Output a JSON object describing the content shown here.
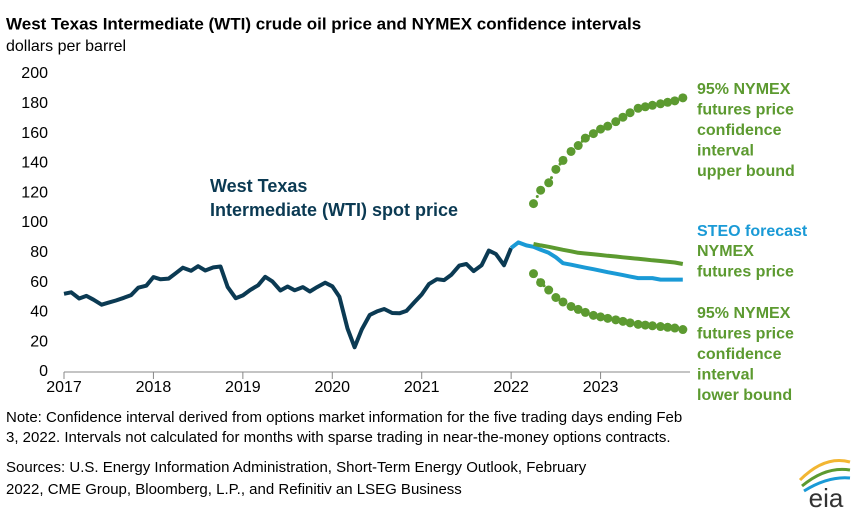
{
  "chart_data": {
    "type": "line",
    "title": "West Texas Intermediate (WTI) crude oil price and NYMEX confidence intervals",
    "subtitle": "dollars per barrel",
    "xlim": [
      2017,
      2024
    ],
    "xticks": [
      2017,
      2018,
      2019,
      2020,
      2021,
      2022,
      2023
    ],
    "ylim": [
      0,
      200
    ],
    "yticks": [
      0,
      20,
      40,
      60,
      80,
      100,
      120,
      140,
      160,
      180,
      200
    ],
    "grid": false,
    "series": [
      {
        "name": "West Texas Intermediate (WTI) spot price",
        "color": "#0b3a53",
        "style": "solid",
        "x": [
          2017.0,
          2017.08,
          2017.17,
          2017.25,
          2017.33,
          2017.42,
          2017.5,
          2017.58,
          2017.67,
          2017.75,
          2017.83,
          2017.92,
          2018.0,
          2018.08,
          2018.17,
          2018.25,
          2018.33,
          2018.42,
          2018.5,
          2018.58,
          2018.67,
          2018.75,
          2018.83,
          2018.92,
          2019.0,
          2019.08,
          2019.17,
          2019.25,
          2019.33,
          2019.42,
          2019.5,
          2019.58,
          2019.67,
          2019.75,
          2019.83,
          2019.92,
          2020.0,
          2020.08,
          2020.17,
          2020.25,
          2020.33,
          2020.42,
          2020.5,
          2020.58,
          2020.67,
          2020.75,
          2020.83,
          2020.92,
          2021.0,
          2021.08,
          2021.17,
          2021.25,
          2021.33,
          2021.42,
          2021.5,
          2021.58,
          2021.67,
          2021.75,
          2021.83,
          2021.92,
          2022.0
        ],
        "values": [
          52.5,
          53.5,
          49.3,
          51.1,
          48.5,
          45.2,
          46.6,
          48.0,
          49.8,
          51.6,
          56.6,
          57.9,
          63.7,
          62.2,
          62.7,
          66.3,
          70.0,
          67.9,
          71.0,
          68.1,
          70.2,
          70.8,
          57.0,
          49.5,
          51.4,
          55.0,
          58.2,
          63.9,
          60.8,
          54.7,
          57.4,
          54.8,
          57.0,
          54.0,
          57.0,
          59.9,
          57.5,
          50.5,
          29.2,
          16.6,
          28.6,
          38.3,
          40.7,
          42.3,
          39.6,
          39.4,
          41.0,
          47.0,
          52.0,
          59.0,
          62.3,
          61.7,
          65.2,
          71.4,
          72.5,
          67.7,
          71.6,
          81.5,
          79.2,
          71.7,
          83.2
        ]
      },
      {
        "name": "STEO forecast",
        "color": "#1a9ad6",
        "style": "solid",
        "x": [
          2022.0,
          2022.08,
          2022.17,
          2022.25,
          2022.33,
          2022.42,
          2022.5,
          2022.58,
          2022.67,
          2022.75,
          2022.83,
          2022.92,
          2023.0,
          2023.08,
          2023.17,
          2023.25,
          2023.33,
          2023.42,
          2023.5,
          2023.58,
          2023.67,
          2023.75,
          2023.83,
          2023.92
        ],
        "values": [
          83.2,
          87,
          85,
          84,
          82,
          80,
          77,
          73,
          72,
          71,
          70,
          69,
          68,
          67,
          66,
          65,
          64,
          63,
          63,
          63,
          62,
          62,
          62,
          62
        ]
      },
      {
        "name": "NYMEX futures price",
        "color": "#5c9a30",
        "style": "solid",
        "x": [
          2022.25,
          2022.33,
          2022.42,
          2022.5,
          2022.58,
          2022.67,
          2022.75,
          2022.83,
          2022.92,
          2023.0,
          2023.08,
          2023.17,
          2023.25,
          2023.33,
          2023.42,
          2023.5,
          2023.58,
          2023.67,
          2023.75,
          2023.83,
          2023.92
        ],
        "values": [
          86,
          85,
          84,
          83,
          82,
          81,
          80,
          79.5,
          79,
          78.5,
          78,
          77.5,
          77,
          76.5,
          76,
          75.5,
          75,
          74.5,
          74,
          73.5,
          72.5
        ]
      },
      {
        "name": "95% NYMEX futures price confidence interval upper bound",
        "color": "#5c9a30",
        "style": "dots",
        "x": [
          2022.25,
          2022.33,
          2022.42,
          2022.5,
          2022.58,
          2022.67,
          2022.75,
          2022.83,
          2022.92,
          2023.0,
          2023.08,
          2023.17,
          2023.25,
          2023.33,
          2023.42,
          2023.5,
          2023.58,
          2023.67,
          2023.75,
          2023.83,
          2023.92
        ],
        "values": [
          113,
          122,
          127,
          136,
          142,
          148,
          152,
          157,
          160,
          163,
          165,
          168,
          171,
          174,
          177,
          178,
          179,
          180,
          181,
          182,
          184
        ]
      },
      {
        "name": "95% NYMEX futures price confidence interval lower bound",
        "color": "#5c9a30",
        "style": "dots",
        "x": [
          2022.25,
          2022.33,
          2022.42,
          2022.5,
          2022.58,
          2022.67,
          2022.75,
          2022.83,
          2022.92,
          2023.0,
          2023.08,
          2023.17,
          2023.25,
          2023.33,
          2023.42,
          2023.5,
          2023.58,
          2023.67,
          2023.75,
          2023.83,
          2023.92
        ],
        "values": [
          66,
          60,
          55,
          50,
          47,
          44,
          42,
          40,
          38,
          37,
          36,
          35,
          34,
          33,
          32,
          31.5,
          31,
          30.5,
          30,
          29.5,
          28.5
        ]
      }
    ],
    "annotations": [
      {
        "lines": [
          "West Texas",
          "Intermediate (WTI) spot price"
        ],
        "color": "#0b3a53"
      },
      {
        "lines": [
          "95% NYMEX",
          "futures price",
          "confidence",
          "interval",
          "upper bound"
        ],
        "color": "#5c9a30"
      },
      {
        "lines": [
          "STEO forecast"
        ],
        "color": "#1a9ad6"
      },
      {
        "lines": [
          "NYMEX",
          "futures price"
        ],
        "color": "#5c9a30"
      },
      {
        "lines": [
          "95% NYMEX",
          "futures price",
          "confidence",
          "interval",
          "lower bound"
        ],
        "color": "#5c9a30"
      }
    ],
    "notes": [
      "Note: Confidence interval derived from options market information for the five trading days ending Feb",
      "3, 2022. Intervals not calculated for months with sparse trading in near-the-money options contracts."
    ],
    "sources": [
      "Sources: U.S. Energy Information Administration, Short-Term Energy Outlook, February",
      "2022, CME Group, Bloomberg, L.P., and Refinitiv an LSEG Business"
    ],
    "logo": "eia"
  }
}
